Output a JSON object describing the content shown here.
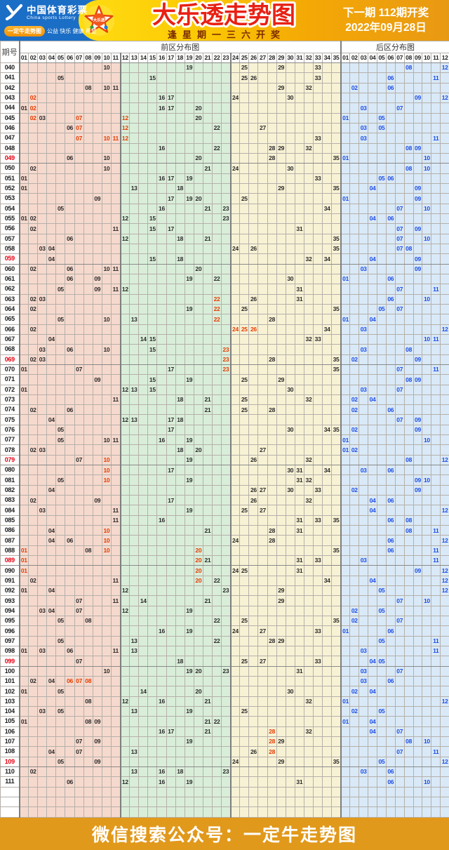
{
  "header": {
    "brand_cn": "中国体育彩票",
    "brand_en": "China sports Lottery",
    "badge": "一定牛走势图",
    "slogan": "公益 快乐 健康 希望",
    "title": "大乐透走势图",
    "subtitle": "逢星期一三六开奖",
    "next_line1": "下一期 112期开奖",
    "next_line2": "2022年09月28日",
    "star_icon_text": "大乐透"
  },
  "footer": {
    "text": "微信搜索公众号：一定牛走势图"
  },
  "icons": {
    "brand_logo": "sports-lottery-logo",
    "star": "lottery-star-icon"
  },
  "colors": {
    "header_blue": "#1b6ec6",
    "gold": "#f4a805",
    "footer_orange": "#e1991b",
    "zone_pink": "#f6d9cd",
    "zone_green": "#d9eed9",
    "zone_yellow": "#f8f2d5",
    "zone_blue": "#d9e9f7",
    "front_black": "#2a2a2a",
    "hot_red": "#e63c00",
    "back_blue": "#1d4de6",
    "period_red": "#e60012"
  },
  "chart_data": {
    "type": "table",
    "title": "大乐透走势图",
    "period_header": "期号",
    "front_zone_title": "前区分布图",
    "back_zone_title": "后区分布图",
    "front_columns": [
      "01",
      "02",
      "03",
      "04",
      "05",
      "06",
      "07",
      "08",
      "09",
      "10",
      "11",
      "12",
      "13",
      "14",
      "15",
      "16",
      "17",
      "18",
      "19",
      "20",
      "21",
      "22",
      "23",
      "24",
      "25",
      "26",
      "27",
      "28",
      "29",
      "30",
      "31",
      "32",
      "33",
      "34",
      "35"
    ],
    "back_columns": [
      "01",
      "02",
      "03",
      "04",
      "05",
      "06",
      "07",
      "08",
      "09",
      "10",
      "11",
      "12"
    ],
    "hot_suffix": "r",
    "empty_rows": 3,
    "rows": [
      {
        "p": "040",
        "f": [
          "10",
          "19",
          "25",
          "29",
          "33"
        ],
        "b": [
          "08",
          "12"
        ]
      },
      {
        "p": "041",
        "f": [
          "05",
          "15",
          "25",
          "26",
          "33"
        ],
        "b": [
          "06",
          "11"
        ]
      },
      {
        "p": "042",
        "f": [
          "08",
          "10",
          "11",
          "29",
          "32"
        ],
        "b": [
          "02",
          "06"
        ]
      },
      {
        "p": "043",
        "f": [
          "02r",
          "16",
          "17",
          "24",
          "30"
        ],
        "b": [
          "09",
          "12"
        ]
      },
      {
        "p": "044",
        "f": [
          "01",
          "02r",
          "16",
          "17",
          "20"
        ],
        "b": [
          "03",
          "07"
        ]
      },
      {
        "p": "045",
        "f": [
          "02r",
          "03",
          "07r",
          "12r",
          "20"
        ],
        "b": [
          "01",
          "05"
        ]
      },
      {
        "p": "046",
        "f": [
          "06",
          "07r",
          "12r",
          "22",
          "27"
        ],
        "b": [
          "03",
          "05"
        ]
      },
      {
        "p": "047",
        "f": [
          "07r",
          "10r",
          "11r",
          "12r",
          "33"
        ],
        "b": [
          "03",
          "11"
        ]
      },
      {
        "p": "048",
        "f": [
          "16",
          "22",
          "28",
          "29",
          "32"
        ],
        "b": [
          "08",
          "09"
        ]
      },
      {
        "p": "049",
        "hl": 1,
        "f": [
          "06",
          "10",
          "20",
          "28",
          "35"
        ],
        "b": [
          "01",
          "10"
        ]
      },
      {
        "p": "050",
        "f": [
          "02",
          "10",
          "21",
          "24",
          "30"
        ],
        "b": [
          "08",
          "10"
        ]
      },
      {
        "p": "051",
        "f": [
          "01",
          "16",
          "17",
          "19",
          "33"
        ],
        "b": [
          "05",
          "06"
        ]
      },
      {
        "p": "052",
        "f": [
          "01",
          "13",
          "18",
          "29",
          "35"
        ],
        "b": [
          "04",
          "09"
        ]
      },
      {
        "p": "053",
        "f": [
          "09",
          "17",
          "19",
          "20",
          "25"
        ],
        "b": [
          "01",
          "09"
        ]
      },
      {
        "p": "054",
        "f": [
          "05",
          "16",
          "21",
          "23",
          "34"
        ],
        "b": [
          "07",
          "10"
        ]
      },
      {
        "p": "055",
        "f": [
          "01",
          "02",
          "12",
          "15",
          "23"
        ],
        "b": [
          "04",
          "06"
        ]
      },
      {
        "p": "056",
        "f": [
          "02",
          "11",
          "15",
          "17",
          "31"
        ],
        "b": [
          "07",
          "09"
        ]
      },
      {
        "p": "057",
        "f": [
          "06",
          "12",
          "18",
          "21",
          "35"
        ],
        "b": [
          "07",
          "10"
        ]
      },
      {
        "p": "058",
        "f": [
          "03",
          "04",
          "24",
          "26",
          "35"
        ],
        "b": [
          "07",
          "08"
        ]
      },
      {
        "p": "059",
        "hl": 1,
        "f": [
          "04",
          "15",
          "18",
          "32",
          "34"
        ],
        "b": [
          "04",
          "09"
        ]
      },
      {
        "p": "060",
        "f": [
          "02",
          "06",
          "10",
          "11",
          "20"
        ],
        "b": [
          "03",
          "09"
        ]
      },
      {
        "p": "061",
        "f": [
          "06",
          "09",
          "19",
          "22",
          "30"
        ],
        "b": [
          "01",
          "06"
        ]
      },
      {
        "p": "062",
        "f": [
          "05",
          "09",
          "11",
          "12",
          "31"
        ],
        "b": [
          "07",
          "11"
        ]
      },
      {
        "p": "063",
        "f": [
          "02",
          "03",
          "22r",
          "26",
          "31"
        ],
        "b": [
          "06",
          "10"
        ]
      },
      {
        "p": "064",
        "f": [
          "02",
          "19",
          "22r",
          "25",
          "35"
        ],
        "b": [
          "05",
          "07"
        ]
      },
      {
        "p": "065",
        "f": [
          "05",
          "10",
          "13",
          "22r",
          "28"
        ],
        "b": [
          "01",
          "04"
        ]
      },
      {
        "p": "066",
        "f": [
          "02",
          "24r",
          "25r",
          "26r",
          "34"
        ],
        "b": [
          "03",
          "12"
        ]
      },
      {
        "p": "067",
        "f": [
          "04",
          "14",
          "15",
          "32",
          "33"
        ],
        "b": [
          "10",
          "11"
        ]
      },
      {
        "p": "068",
        "f": [
          "03",
          "06",
          "10",
          "15",
          "23r"
        ],
        "b": [
          "03",
          "08"
        ]
      },
      {
        "p": "069",
        "hl": 1,
        "f": [
          "02",
          "03",
          "23r",
          "28",
          "35"
        ],
        "b": [
          "02",
          "09"
        ]
      },
      {
        "p": "070",
        "f": [
          "01",
          "07",
          "17",
          "23r",
          "35"
        ],
        "b": [
          "07",
          "11"
        ]
      },
      {
        "p": "071",
        "f": [
          "09",
          "15",
          "19",
          "25",
          "29"
        ],
        "b": [
          "08",
          "09"
        ]
      },
      {
        "p": "072",
        "f": [
          "01",
          "12",
          "13",
          "15",
          "30"
        ],
        "b": [
          "03",
          "07"
        ]
      },
      {
        "p": "073",
        "f": [
          "11",
          "18",
          "21",
          "25",
          "32"
        ],
        "b": [
          "02",
          "04"
        ]
      },
      {
        "p": "074",
        "f": [
          "02",
          "06",
          "21",
          "25",
          "28"
        ],
        "b": [
          "02",
          "06"
        ]
      },
      {
        "p": "075",
        "f": [
          "04",
          "12",
          "13",
          "17",
          "18"
        ],
        "b": [
          "07",
          "09"
        ]
      },
      {
        "p": "076",
        "f": [
          "05",
          "17",
          "30",
          "34",
          "35"
        ],
        "b": [
          "02",
          "09"
        ]
      },
      {
        "p": "077",
        "f": [
          "05",
          "10",
          "11",
          "16",
          "19"
        ],
        "b": [
          "01",
          "10"
        ]
      },
      {
        "p": "078",
        "f": [
          "02",
          "03",
          "18",
          "20",
          "27"
        ],
        "b": [
          "01",
          "02"
        ]
      },
      {
        "p": "079",
        "hl": 1,
        "f": [
          "07",
          "10r",
          "19",
          "26",
          "32"
        ],
        "b": [
          "08",
          "12"
        ]
      },
      {
        "p": "080",
        "f": [
          "10r",
          "17",
          "30",
          "31",
          "34"
        ],
        "b": [
          "03",
          "06"
        ]
      },
      {
        "p": "081",
        "f": [
          "05",
          "10r",
          "19",
          "31",
          "32"
        ],
        "b": [
          "09",
          "10"
        ]
      },
      {
        "p": "082",
        "f": [
          "04",
          "26",
          "27",
          "30",
          "33"
        ],
        "b": [
          "02",
          "09"
        ]
      },
      {
        "p": "083",
        "f": [
          "02",
          "09",
          "17",
          "26",
          "32"
        ],
        "b": [
          "04",
          "06"
        ]
      },
      {
        "p": "084",
        "f": [
          "03",
          "11",
          "19",
          "25",
          "27"
        ],
        "b": [
          "04",
          "12"
        ]
      },
      {
        "p": "085",
        "f": [
          "11",
          "16",
          "31",
          "33",
          "35"
        ],
        "b": [
          "06",
          "08"
        ]
      },
      {
        "p": "086",
        "f": [
          "04",
          "10r",
          "21",
          "28",
          "31"
        ],
        "b": [
          "08",
          "11"
        ]
      },
      {
        "p": "087",
        "f": [
          "04",
          "06",
          "10r",
          "24",
          "28"
        ],
        "b": [
          "06",
          "12"
        ]
      },
      {
        "p": "088",
        "f": [
          "01r",
          "08",
          "10r",
          "20r",
          "35"
        ],
        "b": [
          "06",
          "11"
        ]
      },
      {
        "p": "089",
        "hl": 1,
        "f": [
          "01r",
          "20r",
          "21",
          "31",
          "33"
        ],
        "b": [
          "03",
          "11"
        ]
      },
      {
        "p": "090",
        "f": [
          "01r",
          "20r",
          "24",
          "25",
          "31"
        ],
        "b": [
          "09",
          "12"
        ]
      },
      {
        "p": "091",
        "f": [
          "02",
          "11",
          "20r",
          "22",
          "34"
        ],
        "b": [
          "04",
          "12"
        ]
      },
      {
        "p": "092",
        "f": [
          "01",
          "04",
          "12",
          "23",
          "29"
        ],
        "b": [
          "05",
          "12"
        ]
      },
      {
        "p": "093",
        "f": [
          "07",
          "11",
          "14",
          "21",
          "29"
        ],
        "b": [
          "07",
          "10"
        ]
      },
      {
        "p": "094",
        "f": [
          "03",
          "04",
          "07",
          "12",
          "19"
        ],
        "b": [
          "02",
          "05"
        ]
      },
      {
        "p": "095",
        "f": [
          "05",
          "08",
          "22",
          "25",
          "35"
        ],
        "b": [
          "02",
          "07"
        ]
      },
      {
        "p": "096",
        "f": [
          "16",
          "19",
          "24",
          "27",
          "33"
        ],
        "b": [
          "01",
          "06"
        ]
      },
      {
        "p": "097",
        "f": [
          "05",
          "13",
          "22",
          "28",
          "29"
        ],
        "b": [
          "05",
          "11"
        ]
      },
      {
        "p": "098",
        "f": [
          "01",
          "03",
          "06",
          "11",
          "13"
        ],
        "b": [
          "03",
          "11"
        ]
      },
      {
        "p": "099",
        "hl": 1,
        "f": [
          "07",
          "18",
          "25",
          "27",
          "33"
        ],
        "b": [
          "04",
          "05"
        ]
      },
      {
        "p": "100",
        "f": [
          "10",
          "19",
          "20",
          "23",
          "31"
        ],
        "b": [
          "03",
          "07"
        ]
      },
      {
        "p": "101",
        "f": [
          "02",
          "04",
          "06r",
          "07r",
          "08r"
        ],
        "b": [
          "03",
          "06"
        ]
      },
      {
        "p": "102",
        "f": [
          "01",
          "05",
          "14",
          "20",
          "30"
        ],
        "b": [
          "02",
          "04"
        ]
      },
      {
        "p": "103",
        "f": [
          "08",
          "12",
          "16",
          "21",
          "32"
        ],
        "b": [
          "01",
          "12"
        ]
      },
      {
        "p": "104",
        "f": [
          "03",
          "05",
          "13",
          "19",
          "25"
        ],
        "b": [
          "02",
          "05"
        ]
      },
      {
        "p": "105",
        "f": [
          "01",
          "08",
          "09",
          "21",
          "22"
        ],
        "b": [
          "01",
          "04"
        ]
      },
      {
        "p": "106",
        "f": [
          "16",
          "17",
          "21",
          "28r",
          "32"
        ],
        "b": [
          "04",
          "07"
        ]
      },
      {
        "p": "107",
        "f": [
          "07",
          "09",
          "19",
          "28r",
          "29"
        ],
        "b": [
          "08",
          "10"
        ]
      },
      {
        "p": "108",
        "f": [
          "04",
          "07",
          "13",
          "26",
          "28r"
        ],
        "b": [
          "07",
          "11"
        ]
      },
      {
        "p": "109",
        "hl": 1,
        "f": [
          "05",
          "09",
          "24",
          "29",
          "35"
        ],
        "b": [
          "05",
          "12"
        ]
      },
      {
        "p": "110",
        "f": [
          "02",
          "13",
          "16",
          "18",
          "23"
        ],
        "b": [
          "03",
          "06"
        ]
      },
      {
        "p": "111",
        "f": [
          "06",
          "12",
          "16",
          "19",
          "31"
        ],
        "b": [
          "06",
          "10"
        ]
      }
    ]
  }
}
